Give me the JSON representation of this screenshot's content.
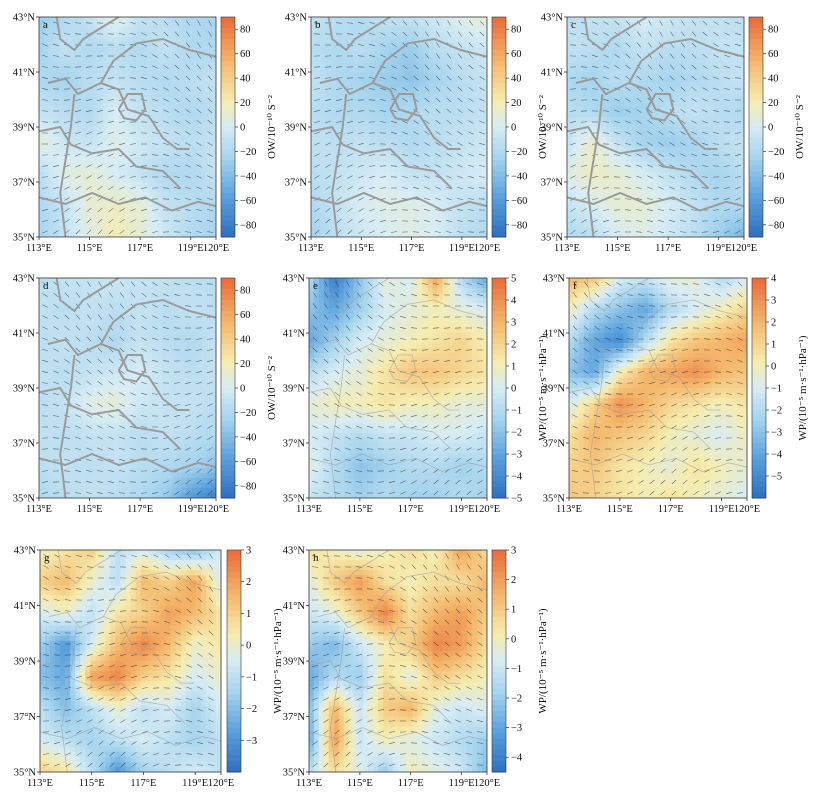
{
  "figure": {
    "lon_ticks": [
      "113°E",
      "115°E",
      "117°E",
      "119°E",
      "120°E"
    ],
    "lat_ticks": [
      "43°N",
      "41°N",
      "39°N",
      "37°N",
      "35°N"
    ],
    "ow_label": "OW/10⁻¹⁰ S⁻²",
    "wp_label": "WP/(10⁻⁵ m·s⁻¹·hPa⁻¹)"
  },
  "colors": {
    "neg_strong": "#2f6fbf",
    "neg_mid": "#5aa0dc",
    "neg_weak": "#a6d4ee",
    "near_zero": "#d7ecf4",
    "pos_weak": "#f6ecae",
    "pos_mid": "#f4b66a",
    "pos_strong": "#e86a3a",
    "province_border": "#9a9a9a"
  },
  "chart_data": [
    {
      "type": "heatmap",
      "panel": "a",
      "variable": "OW",
      "x_range": [
        113,
        120
      ],
      "y_range": [
        35,
        43
      ],
      "colorbar_ticks": [
        "80",
        "60",
        "40",
        "20",
        "0",
        "−20",
        "−40",
        "−60",
        "−80"
      ],
      "colorbar_range": [
        -90,
        90
      ],
      "field": [
        [
          -30,
          -20,
          -10,
          10,
          -10,
          -15,
          -20,
          -25
        ],
        [
          -25,
          -10,
          -20,
          -15,
          -20,
          -10,
          -20,
          -20
        ],
        [
          -20,
          -25,
          -15,
          -10,
          -15,
          -20,
          -15,
          -10
        ],
        [
          -10,
          -15,
          -20,
          0,
          -10,
          -15,
          -20,
          -15
        ],
        [
          10,
          -5,
          -10,
          5,
          -5,
          -10,
          -15,
          -10
        ],
        [
          -15,
          5,
          10,
          0,
          -10,
          -20,
          -20,
          -10
        ],
        [
          -20,
          -10,
          10,
          15,
          10,
          -10,
          -15,
          -20
        ],
        [
          -25,
          -10,
          5,
          20,
          10,
          -5,
          -20,
          -25
        ]
      ]
    },
    {
      "type": "heatmap",
      "panel": "b",
      "variable": "OW",
      "x_range": [
        113,
        120
      ],
      "y_range": [
        35,
        43
      ],
      "colorbar_ticks": [
        "80",
        "60",
        "40",
        "20",
        "0",
        "−20",
        "−40",
        "−60",
        "−80"
      ],
      "colorbar_range": [
        -90,
        90
      ],
      "field": [
        [
          -10,
          -15,
          -20,
          -10,
          -10,
          -5,
          5,
          10
        ],
        [
          -15,
          -20,
          -15,
          -25,
          -30,
          -15,
          -10,
          -5
        ],
        [
          -10,
          -20,
          -25,
          -30,
          -35,
          -25,
          -15,
          -10
        ],
        [
          -15,
          -20,
          -20,
          -25,
          -20,
          -15,
          -15,
          -10
        ],
        [
          -10,
          -15,
          -10,
          -15,
          -20,
          -15,
          -10,
          -5
        ],
        [
          -15,
          -10,
          -5,
          0,
          -10,
          -10,
          -5,
          0
        ],
        [
          -20,
          -10,
          0,
          5,
          5,
          0,
          -10,
          -15
        ],
        [
          -25,
          -15,
          -5,
          0,
          5,
          0,
          -15,
          -20
        ]
      ]
    },
    {
      "type": "heatmap",
      "panel": "c",
      "variable": "OW",
      "x_range": [
        113,
        120
      ],
      "y_range": [
        35,
        43
      ],
      "colorbar_ticks": [
        "80",
        "60",
        "40",
        "20",
        "0",
        "−20",
        "−40",
        "−60",
        "−80"
      ],
      "colorbar_range": [
        -90,
        90
      ],
      "field": [
        [
          -15,
          -10,
          -10,
          0,
          -5,
          -10,
          -10,
          -15
        ],
        [
          -10,
          -15,
          -20,
          -10,
          -15,
          -15,
          -10,
          -10
        ],
        [
          -20,
          -25,
          -15,
          -20,
          -25,
          -20,
          -15,
          -10
        ],
        [
          -15,
          -20,
          -30,
          -25,
          -15,
          -10,
          -15,
          -20
        ],
        [
          -10,
          15,
          -10,
          -25,
          -30,
          -25,
          -15,
          -10
        ],
        [
          5,
          15,
          10,
          0,
          -10,
          -20,
          -25,
          -15
        ],
        [
          -10,
          0,
          10,
          10,
          0,
          -10,
          -20,
          -20
        ],
        [
          -20,
          -15,
          0,
          5,
          -5,
          -15,
          -30,
          -45
        ]
      ]
    },
    {
      "type": "heatmap",
      "panel": "d",
      "variable": "OW",
      "x_range": [
        113,
        120
      ],
      "y_range": [
        35,
        43
      ],
      "colorbar_ticks": [
        "80",
        "60",
        "40",
        "20",
        "0",
        "−20",
        "−40",
        "−60",
        "−80"
      ],
      "colorbar_range": [
        -90,
        90
      ],
      "field": [
        [
          -15,
          -10,
          -10,
          -5,
          -10,
          -10,
          -15,
          -15
        ],
        [
          -10,
          -15,
          -10,
          -15,
          -10,
          -15,
          -10,
          -15
        ],
        [
          -15,
          -10,
          -15,
          -20,
          -10,
          -15,
          -20,
          -10
        ],
        [
          -10,
          -15,
          -10,
          -5,
          0,
          -10,
          -15,
          -10
        ],
        [
          -15,
          -10,
          5,
          10,
          -5,
          -10,
          -10,
          -15
        ],
        [
          -10,
          -15,
          -10,
          -10,
          -15,
          -10,
          -15,
          -20
        ],
        [
          -15,
          -10,
          -15,
          -10,
          -15,
          -20,
          -25,
          -35
        ],
        [
          -20,
          -15,
          -10,
          -15,
          -20,
          -30,
          -60,
          -80
        ]
      ]
    },
    {
      "type": "heatmap",
      "panel": "e",
      "variable": "WP",
      "x_range": [
        113,
        120
      ],
      "y_range": [
        35,
        43
      ],
      "colorbar_ticks": [
        "5",
        "4",
        "3",
        "2",
        "1",
        "0",
        "−1",
        "−2",
        "−3",
        "−4",
        "−5"
      ],
      "colorbar_range": [
        -5,
        5
      ],
      "field": [
        [
          -1,
          -4.5,
          -2,
          0.5,
          0,
          3.5,
          -1,
          -3
        ],
        [
          -2,
          -3,
          -1.5,
          0,
          0.5,
          1,
          0.5,
          0
        ],
        [
          -3,
          -1.5,
          0,
          0.5,
          1,
          1.5,
          2,
          1
        ],
        [
          -1,
          0,
          0.5,
          1.5,
          2.5,
          2.5,
          2,
          1.5
        ],
        [
          0.5,
          1,
          1,
          1.5,
          1,
          1,
          0.5,
          0.5
        ],
        [
          0,
          -0.5,
          -1,
          -0.5,
          -0.5,
          0,
          0,
          -0.5
        ],
        [
          0.5,
          -1,
          -2,
          -1.5,
          -1,
          -1,
          -1.5,
          -1
        ],
        [
          -0.5,
          -1,
          -1.5,
          -1,
          -1.5,
          -1.5,
          -1,
          -1.5
        ]
      ]
    },
    {
      "type": "heatmap",
      "panel": "f",
      "variable": "WP",
      "x_range": [
        113,
        120
      ],
      "y_range": [
        35,
        43
      ],
      "colorbar_ticks": [
        "4",
        "3",
        "2",
        "1",
        "0",
        "−1",
        "−2",
        "−3",
        "−4",
        "−5"
      ],
      "colorbar_range": [
        -6,
        4
      ],
      "field": [
        [
          2,
          1.5,
          -1,
          -1.5,
          -0.5,
          -0.5,
          -2,
          -1
        ],
        [
          0,
          -2,
          -3,
          -4,
          -2,
          -1,
          0,
          1
        ],
        [
          -2,
          -4,
          -5,
          -2,
          0.5,
          1.5,
          2,
          2.5
        ],
        [
          -3,
          -4,
          0,
          2,
          2.5,
          3,
          2,
          1.5
        ],
        [
          -1,
          1,
          3,
          2,
          1,
          0.5,
          0,
          0.5
        ],
        [
          0.5,
          2,
          1.5,
          1,
          0,
          -0.5,
          -1,
          0
        ],
        [
          1,
          1.5,
          0.5,
          0,
          -0.5,
          0.5,
          0,
          -0.5
        ],
        [
          1.5,
          1,
          0.5,
          0,
          0.5,
          0,
          -0.5,
          -1
        ]
      ]
    },
    {
      "type": "heatmap",
      "panel": "g",
      "variable": "WP",
      "x_range": [
        113,
        120
      ],
      "y_range": [
        35,
        43
      ],
      "colorbar_ticks": [
        "3",
        "2",
        "1",
        "0",
        "−1",
        "−2",
        "−3"
      ],
      "colorbar_range": [
        -4,
        3
      ],
      "field": [
        [
          0,
          0.5,
          1,
          -1,
          -0.5,
          -1.5,
          -2,
          -0.5
        ],
        [
          1,
          1.5,
          0,
          -1,
          1.5,
          1,
          2,
          -0.5
        ],
        [
          -0.5,
          0,
          -1,
          0.5,
          1,
          2,
          1.5,
          0.5
        ],
        [
          -1.5,
          -3,
          -0.5,
          1.5,
          2.5,
          1.5,
          0,
          0.5
        ],
        [
          -2,
          -2.5,
          2,
          2.5,
          1,
          0.5,
          -0.5,
          0
        ],
        [
          -1,
          -2,
          -1,
          0,
          -1,
          -0.5,
          -1.5,
          -0.5
        ],
        [
          -0.5,
          -1,
          -1.5,
          -1,
          -0.5,
          -1,
          -1.5,
          -1
        ],
        [
          1,
          0.5,
          -1,
          -3,
          -1.5,
          -1,
          -0.5,
          -1
        ]
      ]
    },
    {
      "type": "heatmap",
      "panel": "h",
      "variable": "WP",
      "x_range": [
        113,
        120
      ],
      "y_range": [
        35,
        43
      ],
      "colorbar_ticks": [
        "3",
        "2",
        "1",
        "0",
        "−1",
        "−2",
        "−3",
        "−4"
      ],
      "colorbar_range": [
        -4.5,
        3
      ],
      "field": [
        [
          0.5,
          0,
          -0.5,
          0,
          0.5,
          0,
          2,
          0.5
        ],
        [
          -0.5,
          1,
          2,
          0.5,
          0,
          0.5,
          0.5,
          1.5
        ],
        [
          -1,
          -0.5,
          1,
          2.5,
          0.5,
          1.5,
          2,
          1
        ],
        [
          -2,
          -2.5,
          -1,
          0,
          1,
          2.5,
          2,
          0.5
        ],
        [
          -3,
          -1.5,
          -2,
          0.5,
          -0.5,
          1,
          0.5,
          0
        ],
        [
          -2.5,
          1.5,
          -1,
          1,
          1.5,
          -0.5,
          -1,
          -0.5
        ],
        [
          -3,
          2,
          -1,
          0,
          -0.5,
          -1,
          -1.5,
          -2
        ],
        [
          -1.5,
          0.5,
          -0.5,
          -2,
          0,
          -0.5,
          -1,
          -2.5
        ]
      ]
    }
  ]
}
